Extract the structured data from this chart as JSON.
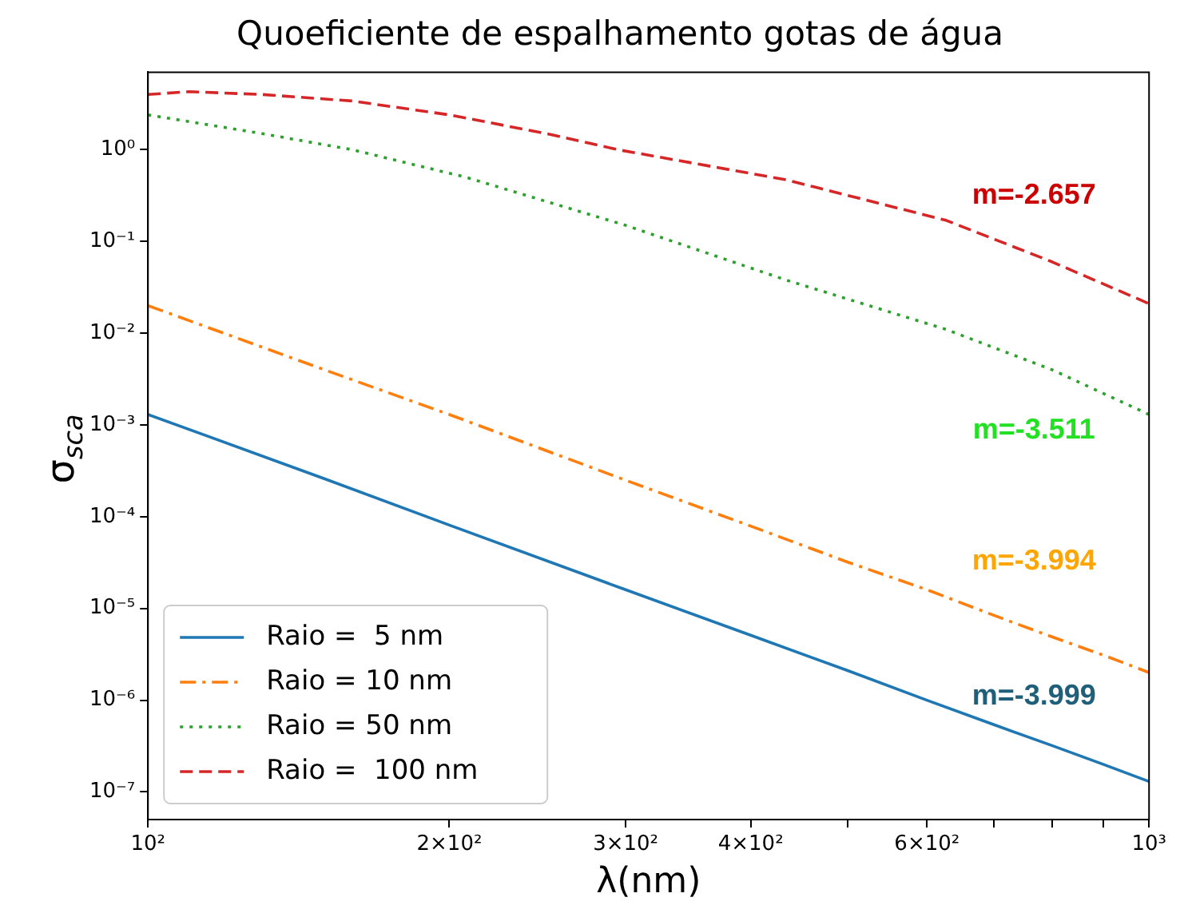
{
  "chart_data": {
    "type": "line",
    "title": "Quoeficiente de espalhamento gotas de água",
    "xlabel": "λ(nm)",
    "ylabel": "σ$_{sca}$",
    "log": "xy",
    "grid": false,
    "legend": "bottom left",
    "marker": "none",
    "xlim": [
      100,
      1000
    ],
    "ylim": [
      5e-08,
      7
    ],
    "xticks": [
      {
        "value": 100,
        "label": "10²"
      },
      {
        "value": 200,
        "label": "2×10²"
      },
      {
        "value": 300,
        "label": "3×10²"
      },
      {
        "value": 400,
        "label": "4×10²"
      },
      {
        "value": 500,
        "label": null
      },
      {
        "value": 600,
        "label": "6×10²"
      },
      {
        "value": 700,
        "label": null
      },
      {
        "value": 800,
        "label": null
      },
      {
        "value": 900,
        "label": null
      },
      {
        "value": 1000,
        "label": "10³"
      }
    ],
    "yticks": [
      {
        "value": 1e-07,
        "label": "10⁻⁷"
      },
      {
        "value": 1e-06,
        "label": "10⁻⁶"
      },
      {
        "value": 1e-05,
        "label": "10⁻⁵"
      },
      {
        "value": 0.0001,
        "label": "10⁻⁴"
      },
      {
        "value": 0.001,
        "label": "10⁻³"
      },
      {
        "value": 0.01,
        "label": "10⁻²"
      },
      {
        "value": 0.1,
        "label": "10⁻¹"
      },
      {
        "value": 1,
        "label": "10⁰"
      }
    ],
    "x": [
      100,
      150,
      200,
      300,
      400,
      500,
      600,
      700,
      800,
      900,
      1000
    ],
    "series": [
      {
        "name": "Raio =  5 nm",
        "color": "#1f77b4",
        "line_style": "solid",
        "values": [
          0.0013,
          0.00026,
          8.1e-05,
          1.6e-05,
          5.1e-06,
          2.1e-06,
          1e-06,
          5.4e-07,
          3.2e-07,
          2e-07,
          1.3e-07
        ]
      },
      {
        "name": "Raio = 10 nm",
        "color": "#ff7f0e",
        "line_style": "dashdot",
        "values": [
          0.02,
          0.004,
          0.0013,
          0.00025,
          7.9e-05,
          3.2e-05,
          1.6e-05,
          8.4e-06,
          4.9e-06,
          3.1e-06,
          2e-06
        ]
      },
      {
        "name": "Raio = 50 nm",
        "color": "#2ca02c",
        "line_style": "dotted",
        "x": [
          100,
          130,
          160,
          208,
          300,
          434,
          627,
          800,
          1000
        ],
        "values": [
          2.4,
          1.5,
          1.0,
          0.5,
          0.15,
          0.038,
          0.011,
          0.004,
          0.0013
        ]
      },
      {
        "name": "Raio =  100 nm",
        "color": "#d62728",
        "line_style": "dashed",
        "x": [
          100,
          110,
          130,
          160,
          200,
          250,
          295,
          434,
          627,
          800,
          1000
        ],
        "values": [
          4.0,
          4.3,
          4.0,
          3.4,
          2.4,
          1.5,
          1.0,
          0.47,
          0.17,
          0.06,
          0.021
        ]
      }
    ],
    "annotations": [
      "m=-2.657",
      "m=-3.511",
      "m=-3.994",
      "m=-3.999"
    ]
  }
}
